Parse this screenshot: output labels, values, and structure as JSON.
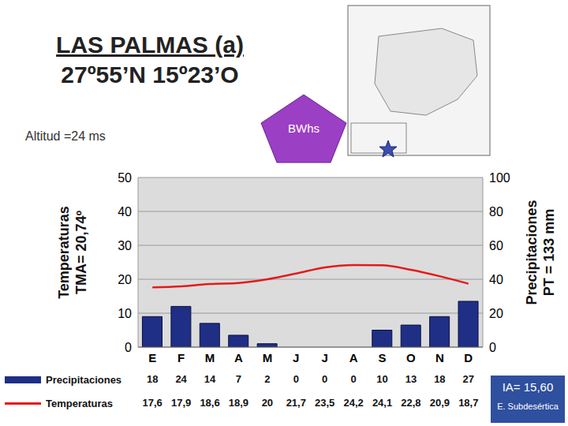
{
  "chart_data": {
    "type": "bar",
    "title": "LAS PALMAS (a)",
    "subtitle": "27º55’N 15º23’O",
    "ylabel": [
      "Temperaturas",
      "TMA= 20,74º"
    ],
    "y2label": [
      "Precipitaciones",
      "PT = 133 mm"
    ],
    "annotations": [
      "Altitud =24 ms",
      "BWhs",
      "IA= 15,60",
      "E. Subdesértica"
    ],
    "categories": [
      "E",
      "F",
      "M",
      "A",
      "M",
      "J",
      "J",
      "A",
      "S",
      "O",
      "N",
      "D"
    ],
    "series": [
      {
        "name": "Precipitaciones",
        "type": "bar",
        "axis": "y2",
        "color": "#1f2f86",
        "values": [
          18,
          24,
          14,
          7,
          2,
          0,
          0,
          0,
          10,
          13,
          18,
          27
        ]
      },
      {
        "name": "Temperaturas",
        "type": "line",
        "color": "#e41a1c",
        "values": [
          17.6,
          17.9,
          18.6,
          18.9,
          20,
          21.7,
          23.5,
          24.2,
          24.1,
          22.8,
          20.9,
          18.7
        ],
        "value_labels": [
          "17,6",
          "17,9",
          "18,6",
          "18,9",
          "20",
          "21,7",
          "23,5",
          "24,2",
          "24,1",
          "22,8",
          "20,9",
          "18,7"
        ]
      }
    ],
    "ylim": [
      0,
      50
    ],
    "yticks": [
      0,
      10,
      20,
      30,
      40,
      50
    ],
    "y2lim": [
      0,
      100
    ],
    "y2ticks": [
      0,
      20,
      40,
      60,
      80,
      100
    ],
    "grid": true
  }
}
